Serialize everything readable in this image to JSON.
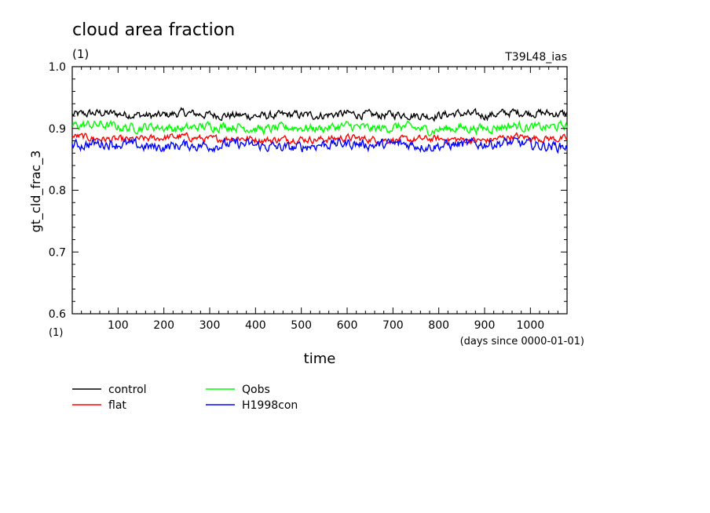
{
  "chart_data": {
    "type": "line",
    "title": "cloud area fraction",
    "units_label": "(1)",
    "run_label": "T39L48_ias",
    "ylabel": "gt_cld_frac_3",
    "y_units": "(1)",
    "xlabel": "time",
    "x_units": "(days since 0000-01-01)",
    "xlim": [
      0,
      1080
    ],
    "ylim": [
      0.6,
      1.0
    ],
    "x_ticks": [
      100,
      200,
      300,
      400,
      500,
      600,
      700,
      800,
      900,
      1000
    ],
    "x_tick_labels": [
      "100",
      "200",
      "300",
      "400",
      "500",
      "600",
      "700",
      "800",
      "900",
      "1000"
    ],
    "y_ticks": [
      0.6,
      0.7,
      0.8,
      0.9,
      1.0
    ],
    "y_tick_labels": [
      "0.6",
      "0.7",
      "0.8",
      "0.9",
      "1.0"
    ],
    "grid": false,
    "legend_position": "bottom-left",
    "series": [
      {
        "name": "control",
        "color": "#000000",
        "x": [
          0,
          60,
          120,
          180,
          240,
          300,
          360,
          420,
          480,
          540,
          600,
          660,
          720,
          780,
          840,
          900,
          960,
          1020,
          1080
        ],
        "values": [
          0.922,
          0.925,
          0.923,
          0.92,
          0.925,
          0.922,
          0.921,
          0.92,
          0.922,
          0.921,
          0.924,
          0.921,
          0.923,
          0.92,
          0.924,
          0.921,
          0.926,
          0.925,
          0.923
        ]
      },
      {
        "name": "flat",
        "color": "#ff0000",
        "x": [
          0,
          60,
          120,
          180,
          240,
          300,
          360,
          420,
          480,
          540,
          600,
          660,
          720,
          780,
          840,
          900,
          960,
          1020,
          1080
        ],
        "values": [
          0.888,
          0.883,
          0.881,
          0.884,
          0.887,
          0.882,
          0.885,
          0.881,
          0.883,
          0.882,
          0.885,
          0.882,
          0.881,
          0.883,
          0.882,
          0.88,
          0.887,
          0.884,
          0.883
        ]
      },
      {
        "name": "Qobs",
        "color": "#00ff00",
        "x": [
          0,
          60,
          120,
          180,
          240,
          300,
          360,
          420,
          480,
          540,
          600,
          660,
          720,
          780,
          840,
          900,
          960,
          1020,
          1080
        ],
        "values": [
          0.905,
          0.906,
          0.901,
          0.903,
          0.899,
          0.904,
          0.903,
          0.898,
          0.902,
          0.9,
          0.904,
          0.899,
          0.903,
          0.897,
          0.901,
          0.9,
          0.905,
          0.901,
          0.904
        ]
      },
      {
        "name": "H1998con",
        "color": "#0000ff",
        "x": [
          0,
          60,
          120,
          180,
          240,
          300,
          360,
          420,
          480,
          540,
          600,
          660,
          720,
          780,
          840,
          900,
          960,
          1020,
          1080
        ],
        "values": [
          0.872,
          0.876,
          0.874,
          0.869,
          0.873,
          0.872,
          0.875,
          0.871,
          0.868,
          0.874,
          0.876,
          0.873,
          0.875,
          0.871,
          0.874,
          0.875,
          0.877,
          0.872,
          0.871
        ]
      }
    ]
  }
}
